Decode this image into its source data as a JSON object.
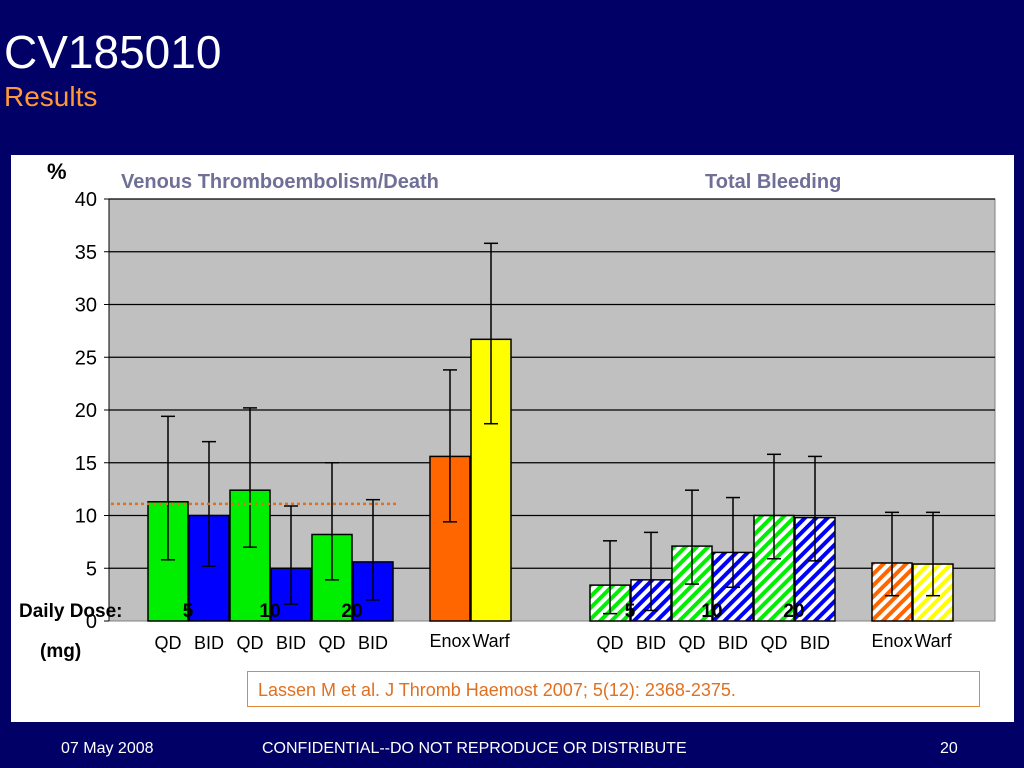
{
  "slide": {
    "title": "CV185010",
    "subtitle": "Results",
    "citation": "Lassen M et al.  J Thromb Haemost 2007; 5(12):  2368-2375."
  },
  "footer": {
    "date": "07 May 2008",
    "confidential": "CONFIDENTIAL--DO NOT REPRODUCE OR DISTRIBUTE",
    "page": "20"
  },
  "chart_data": {
    "type": "bar",
    "ylabel": "%",
    "ylim": [
      0,
      40
    ],
    "yticks": [
      0,
      5,
      10,
      15,
      20,
      25,
      30,
      35,
      40
    ],
    "grid": true,
    "reference_line": {
      "y": 11.1,
      "style": "dotted",
      "color": "#e07020"
    },
    "dose_labels": {
      "label": "Daily Dose:",
      "unit": "(mg)"
    },
    "colors": {
      "qd": "#00ee00",
      "bid": "#0000ff",
      "enox": "#ff6600",
      "warf": "#ffff00",
      "plot_bg": "#c0c0c0"
    },
    "panels": [
      {
        "title": "Venous Thromboembolism/Death",
        "bars": [
          {
            "label": "QD",
            "dose": "5",
            "value": 11.3,
            "err_low": 5.8,
            "err_high": 19.4,
            "color_key": "qd",
            "pattern": "solid"
          },
          {
            "label": "BID",
            "dose": "",
            "value": 10.0,
            "err_low": 5.2,
            "err_high": 17.0,
            "color_key": "bid",
            "pattern": "solid"
          },
          {
            "label": "QD",
            "dose": "10",
            "value": 12.4,
            "err_low": 7.0,
            "err_high": 20.2,
            "color_key": "qd",
            "pattern": "solid"
          },
          {
            "label": "BID",
            "dose": "",
            "value": 5.0,
            "err_low": 1.6,
            "err_high": 10.9,
            "color_key": "bid",
            "pattern": "solid"
          },
          {
            "label": "QD",
            "dose": "20",
            "value": 8.2,
            "err_low": 3.9,
            "err_high": 15.0,
            "color_key": "qd",
            "pattern": "solid"
          },
          {
            "label": "BID",
            "dose": "",
            "value": 5.6,
            "err_low": 2.0,
            "err_high": 11.5,
            "color_key": "bid",
            "pattern": "solid"
          },
          {
            "label": "Enox",
            "dose": "",
            "value": 15.6,
            "err_low": 9.4,
            "err_high": 23.8,
            "color_key": "enox",
            "pattern": "solid"
          },
          {
            "label": "Warf",
            "dose": "",
            "value": 26.7,
            "err_low": 18.7,
            "err_high": 35.8,
            "color_key": "warf",
            "pattern": "solid"
          }
        ]
      },
      {
        "title": "Total Bleeding",
        "bars": [
          {
            "label": "QD",
            "dose": "5",
            "value": 3.4,
            "err_low": 0.7,
            "err_high": 7.6,
            "color_key": "qd",
            "pattern": "hatched"
          },
          {
            "label": "BID",
            "dose": "",
            "value": 3.9,
            "err_low": 1.0,
            "err_high": 8.4,
            "color_key": "bid",
            "pattern": "hatched"
          },
          {
            "label": "QD",
            "dose": "10",
            "value": 7.1,
            "err_low": 3.5,
            "err_high": 12.4,
            "color_key": "qd",
            "pattern": "hatched"
          },
          {
            "label": "BID",
            "dose": "",
            "value": 6.5,
            "err_low": 3.2,
            "err_high": 11.7,
            "color_key": "bid",
            "pattern": "hatched"
          },
          {
            "label": "QD",
            "dose": "20",
            "value": 10.0,
            "err_low": 5.9,
            "err_high": 15.8,
            "color_key": "qd",
            "pattern": "hatched"
          },
          {
            "label": "BID",
            "dose": "",
            "value": 9.8,
            "err_low": 5.7,
            "err_high": 15.6,
            "color_key": "bid",
            "pattern": "hatched"
          },
          {
            "label": "Enox",
            "dose": "",
            "value": 5.5,
            "err_low": 2.4,
            "err_high": 10.3,
            "color_key": "enox",
            "pattern": "hatched"
          },
          {
            "label": "Warf",
            "dose": "",
            "value": 5.4,
            "err_low": 2.4,
            "err_high": 10.3,
            "color_key": "warf",
            "pattern": "hatched"
          }
        ]
      }
    ]
  }
}
